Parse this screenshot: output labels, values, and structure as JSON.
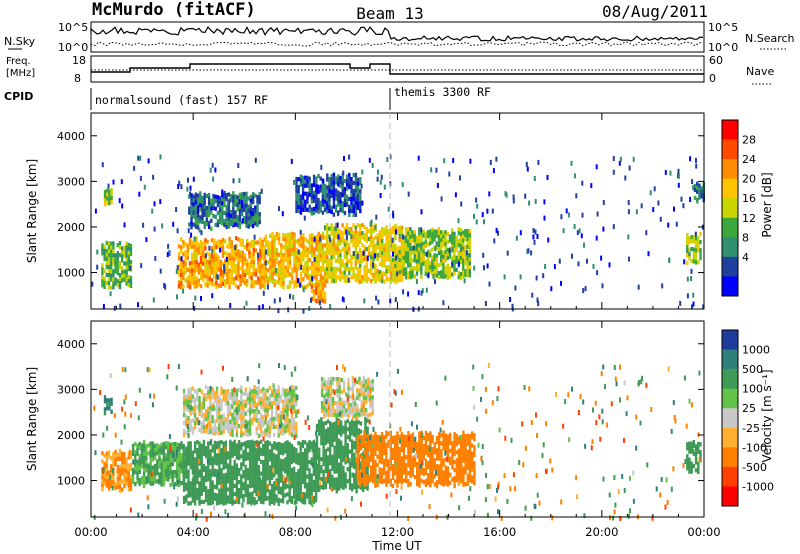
{
  "header": {
    "station": "McMurdo (fitACF)",
    "beam": "Beam 13",
    "date": "08/Aug/2011"
  },
  "summary": {
    "nsky_label": "N.Sky",
    "nsearch_label": "N.Search",
    "freq_label_line1": "Freq.",
    "freq_label_line2": "[MHz]",
    "nave_label": "Nave",
    "cpid_label": "CPID",
    "noise_ticks_left": [
      "10^5",
      "10^0"
    ],
    "noise_ticks_right": [
      "10^5",
      "10^0"
    ],
    "freq_ticks": [
      "18",
      "8"
    ],
    "nave_ticks": [
      "60",
      "0"
    ],
    "cpid_segments": [
      {
        "label": "normalsound (fast) 157 RF",
        "start_h": 0.0,
        "end_h": 12.0
      },
      {
        "label": "themis 3300 RF",
        "start_h": 12.0,
        "end_h": 24.0
      }
    ]
  },
  "power_colorbar": {
    "label": "Power [dB]",
    "ticks": [
      "28",
      "24",
      "20",
      "16",
      "12",
      "8",
      "4"
    ],
    "colors": [
      "#ff0000",
      "#ff4a00",
      "#ff8c00",
      "#ffc400",
      "#c8d400",
      "#3ca83c",
      "#2f8f6e",
      "#2040a0",
      "#0000ff"
    ]
  },
  "velocity_colorbar": {
    "label": "Velocity [m s⁻¹]",
    "ticks": [
      "1000",
      "500",
      "100",
      "25",
      "-25",
      "-100",
      "-500",
      "-1000"
    ],
    "colors": [
      "#1e3c9c",
      "#2f7f7a",
      "#3e9a55",
      "#62c24a",
      "#c8c8c8",
      "#ffb030",
      "#ff8000",
      "#ff4000",
      "#ff0000"
    ]
  },
  "chart_data": [
    {
      "type": "heatmap",
      "name": "power",
      "ylabel": "Slant Range [km]",
      "ylim": [
        200,
        4500
      ],
      "yticks": [
        1000,
        2000,
        3000,
        4000
      ],
      "xlim_hours": [
        0,
        24
      ],
      "regions": [
        {
          "t0": 0.4,
          "t1": 1.6,
          "r0": 700,
          "r1": 1700,
          "level": 14
        },
        {
          "t0": 0.5,
          "t1": 0.8,
          "r0": 2500,
          "r1": 2900,
          "level": 18
        },
        {
          "t0": 3.4,
          "t1": 6.8,
          "r0": 700,
          "r1": 1800,
          "level": 24
        },
        {
          "t0": 6.8,
          "t1": 9.2,
          "r0": 700,
          "r1": 1900,
          "level": 22
        },
        {
          "t0": 8.6,
          "t1": 9.2,
          "r0": 350,
          "r1": 800,
          "level": 26
        },
        {
          "t0": 9.2,
          "t1": 12.2,
          "r0": 800,
          "r1": 2100,
          "level": 20
        },
        {
          "t0": 12.2,
          "t1": 14.8,
          "r0": 900,
          "r1": 2000,
          "level": 16
        },
        {
          "t0": 3.8,
          "t1": 6.6,
          "r0": 2000,
          "r1": 2800,
          "level": 8
        },
        {
          "t0": 8.0,
          "t1": 10.5,
          "r0": 2300,
          "r1": 3200,
          "level": 6
        },
        {
          "t0": 23.3,
          "t1": 23.9,
          "r0": 1200,
          "r1": 1900,
          "level": 16
        },
        {
          "t0": 23.6,
          "t1": 23.95,
          "r0": 2600,
          "r1": 3000,
          "level": 8
        }
      ]
    },
    {
      "type": "heatmap",
      "name": "velocity",
      "ylabel": "Slant Range [km]",
      "ylim": [
        200,
        4500
      ],
      "yticks": [
        1000,
        2000,
        3000,
        4000
      ],
      "xlabel": "Time UT",
      "xticks": [
        "00:00",
        "04:00",
        "08:00",
        "12:00",
        "16:00",
        "20:00",
        "00:00"
      ],
      "xlim_hours": [
        0,
        24
      ],
      "regions": [
        {
          "t0": 0.4,
          "t1": 1.6,
          "r0": 800,
          "r1": 1700,
          "value": -100
        },
        {
          "t0": 0.5,
          "t1": 0.8,
          "r0": 2500,
          "r1": 2900,
          "value": 500
        },
        {
          "t0": 1.6,
          "t1": 3.6,
          "r0": 900,
          "r1": 1900,
          "value": 100
        },
        {
          "t0": 3.6,
          "t1": 8.8,
          "r0": 500,
          "r1": 1900,
          "value": 300
        },
        {
          "t0": 8.8,
          "t1": 10.8,
          "r0": 800,
          "r1": 2400,
          "value": 200
        },
        {
          "t0": 10.4,
          "t1": 15.0,
          "r0": 900,
          "r1": 2100,
          "value": -300
        },
        {
          "t0": 3.6,
          "t1": 8.0,
          "r0": 2000,
          "r1": 3100,
          "value": 0
        },
        {
          "t0": 9.0,
          "t1": 11.0,
          "r0": 2400,
          "r1": 3300,
          "value": 0
        },
        {
          "t0": 23.3,
          "t1": 23.9,
          "r0": 1200,
          "r1": 1900,
          "value": 200
        }
      ]
    }
  ]
}
